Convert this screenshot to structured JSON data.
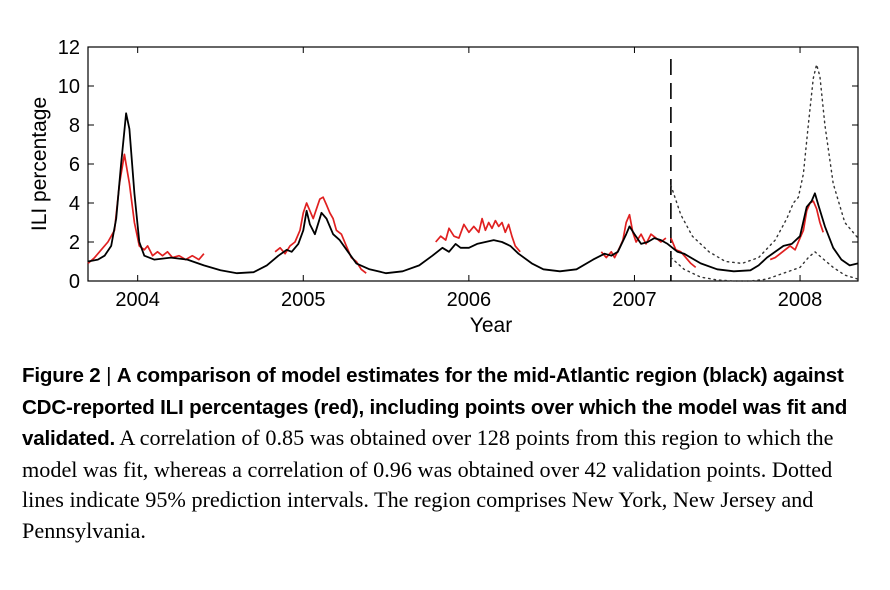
{
  "chart_data": {
    "type": "line",
    "xlabel": "Year",
    "ylabel": "ILI percentage",
    "xlim": [
      2003.7,
      2008.35
    ],
    "ylim": [
      0,
      12
    ],
    "x_ticks": [
      2004,
      2005,
      2006,
      2007,
      2008
    ],
    "y_ticks": [
      0,
      2,
      4,
      6,
      8,
      10,
      12
    ],
    "fit_validation_boundary": 2007.22,
    "series": [
      {
        "color": "#000000",
        "style": "solid",
        "points": [
          [
            2003.7,
            1.0
          ],
          [
            2003.76,
            1.1
          ],
          [
            2003.8,
            1.3
          ],
          [
            2003.84,
            1.8
          ],
          [
            2003.87,
            3.2
          ],
          [
            2003.9,
            6.0
          ],
          [
            2003.93,
            8.6
          ],
          [
            2003.95,
            7.8
          ],
          [
            2003.98,
            4.5
          ],
          [
            2004.01,
            2.0
          ],
          [
            2004.04,
            1.3
          ],
          [
            2004.1,
            1.1
          ],
          [
            2004.2,
            1.2
          ],
          [
            2004.3,
            1.1
          ],
          [
            2004.4,
            0.8
          ],
          [
            2004.5,
            0.55
          ],
          [
            2004.6,
            0.4
          ],
          [
            2004.7,
            0.45
          ],
          [
            2004.78,
            0.8
          ],
          [
            2004.85,
            1.3
          ],
          [
            2004.9,
            1.6
          ],
          [
            2004.93,
            1.5
          ],
          [
            2004.97,
            1.9
          ],
          [
            2005.0,
            2.6
          ],
          [
            2005.02,
            3.6
          ],
          [
            2005.04,
            2.9
          ],
          [
            2005.07,
            2.4
          ],
          [
            2005.11,
            3.5
          ],
          [
            2005.14,
            3.2
          ],
          [
            2005.18,
            2.4
          ],
          [
            2005.22,
            2.1
          ],
          [
            2005.27,
            1.5
          ],
          [
            2005.32,
            0.9
          ],
          [
            2005.4,
            0.6
          ],
          [
            2005.5,
            0.4
          ],
          [
            2005.6,
            0.5
          ],
          [
            2005.7,
            0.8
          ],
          [
            2005.78,
            1.3
          ],
          [
            2005.84,
            1.7
          ],
          [
            2005.88,
            1.5
          ],
          [
            2005.92,
            1.9
          ],
          [
            2005.95,
            1.7
          ],
          [
            2006.0,
            1.7
          ],
          [
            2006.05,
            1.9
          ],
          [
            2006.1,
            2.0
          ],
          [
            2006.15,
            2.1
          ],
          [
            2006.2,
            2.0
          ],
          [
            2006.25,
            1.8
          ],
          [
            2006.3,
            1.4
          ],
          [
            2006.38,
            0.9
          ],
          [
            2006.45,
            0.6
          ],
          [
            2006.55,
            0.5
          ],
          [
            2006.65,
            0.6
          ],
          [
            2006.75,
            1.1
          ],
          [
            2006.82,
            1.4
          ],
          [
            2006.86,
            1.3
          ],
          [
            2006.9,
            1.5
          ],
          [
            2006.95,
            2.4
          ],
          [
            2006.97,
            2.8
          ],
          [
            2007.0,
            2.4
          ],
          [
            2007.04,
            1.9
          ],
          [
            2007.08,
            2.0
          ],
          [
            2007.12,
            2.2
          ],
          [
            2007.16,
            2.1
          ],
          [
            2007.2,
            1.9
          ],
          [
            2007.26,
            1.5
          ],
          [
            2007.3,
            1.4
          ],
          [
            2007.4,
            0.9
          ],
          [
            2007.5,
            0.6
          ],
          [
            2007.6,
            0.5
          ],
          [
            2007.7,
            0.55
          ],
          [
            2007.75,
            0.8
          ],
          [
            2007.8,
            1.2
          ],
          [
            2007.85,
            1.5
          ],
          [
            2007.9,
            1.8
          ],
          [
            2007.95,
            1.9
          ],
          [
            2008.0,
            2.3
          ],
          [
            2008.04,
            3.8
          ],
          [
            2008.07,
            4.1
          ],
          [
            2008.09,
            4.5
          ],
          [
            2008.11,
            3.9
          ],
          [
            2008.15,
            2.8
          ],
          [
            2008.2,
            1.7
          ],
          [
            2008.25,
            1.1
          ],
          [
            2008.3,
            0.8
          ],
          [
            2008.35,
            0.9
          ]
        ]
      },
      {
        "color": "#e02020",
        "style": "solid",
        "points": [
          [
            2003.7,
            0.9
          ],
          [
            2003.74,
            1.2
          ],
          [
            2003.78,
            1.6
          ],
          [
            2003.82,
            2.0
          ],
          [
            2003.86,
            2.6
          ],
          [
            2003.89,
            5.0
          ],
          [
            2003.92,
            6.5
          ],
          [
            2003.95,
            5.0
          ],
          [
            2003.98,
            3.0
          ],
          [
            2004.01,
            1.8
          ],
          [
            2004.04,
            1.5
          ],
          [
            2004.07,
            1.7
          ],
          [
            2004.1,
            1.4
          ],
          [
            2004.14,
            1.3
          ],
          [
            2004.18,
            1.5
          ],
          [
            2004.22,
            1.1
          ],
          [
            2004.26,
            1.2
          ],
          [
            2004.3,
            1.1
          ],
          [
            2004.34,
            1.2
          ],
          [
            2004.38,
            1.1
          ]
        ],
        "segments": [
          [
            [
              2003.7,
              0.9
            ],
            [
              2003.74,
              1.2
            ],
            [
              2003.78,
              1.6
            ],
            [
              2003.82,
              2.0
            ],
            [
              2003.86,
              2.6
            ],
            [
              2003.89,
              5.0
            ],
            [
              2003.92,
              6.5
            ],
            [
              2003.95,
              5.0
            ],
            [
              2003.98,
              3.0
            ],
            [
              2004.01,
              1.8
            ],
            [
              2004.04,
              1.6
            ],
            [
              2004.06,
              1.8
            ],
            [
              2004.09,
              1.3
            ],
            [
              2004.12,
              1.5
            ],
            [
              2004.15,
              1.3
            ],
            [
              2004.18,
              1.5
            ],
            [
              2004.21,
              1.2
            ],
            [
              2004.25,
              1.3
            ],
            [
              2004.29,
              1.1
            ],
            [
              2004.33,
              1.3
            ],
            [
              2004.37,
              1.1
            ],
            [
              2004.4,
              1.4
            ]
          ],
          [
            [
              2004.83,
              1.5
            ],
            [
              2004.86,
              1.7
            ],
            [
              2004.89,
              1.4
            ],
            [
              2004.92,
              1.8
            ],
            [
              2004.95,
              2.0
            ],
            [
              2004.98,
              2.6
            ],
            [
              2005.0,
              3.5
            ],
            [
              2005.02,
              4.0
            ],
            [
              2005.04,
              3.6
            ],
            [
              2005.06,
              3.2
            ],
            [
              2005.08,
              3.7
            ],
            [
              2005.1,
              4.2
            ],
            [
              2005.12,
              4.3
            ],
            [
              2005.14,
              3.9
            ],
            [
              2005.16,
              3.5
            ],
            [
              2005.18,
              3.2
            ],
            [
              2005.2,
              2.6
            ],
            [
              2005.23,
              2.4
            ],
            [
              2005.26,
              1.8
            ],
            [
              2005.29,
              1.2
            ],
            [
              2005.32,
              1.0
            ],
            [
              2005.35,
              0.6
            ],
            [
              2005.38,
              0.4
            ]
          ],
          [
            [
              2005.8,
              2.0
            ],
            [
              2005.83,
              2.3
            ],
            [
              2005.86,
              2.1
            ],
            [
              2005.88,
              2.7
            ],
            [
              2005.91,
              2.3
            ],
            [
              2005.94,
              2.2
            ],
            [
              2005.97,
              2.9
            ],
            [
              2006.0,
              2.5
            ],
            [
              2006.03,
              2.8
            ],
            [
              2006.06,
              2.5
            ],
            [
              2006.08,
              3.2
            ],
            [
              2006.1,
              2.6
            ],
            [
              2006.12,
              3.0
            ],
            [
              2006.14,
              2.7
            ],
            [
              2006.16,
              3.1
            ],
            [
              2006.18,
              2.8
            ],
            [
              2006.2,
              3.0
            ],
            [
              2006.22,
              2.5
            ],
            [
              2006.24,
              2.9
            ],
            [
              2006.26,
              2.3
            ],
            [
              2006.28,
              1.8
            ],
            [
              2006.31,
              1.5
            ]
          ],
          [
            [
              2006.8,
              1.5
            ],
            [
              2006.83,
              1.2
            ],
            [
              2006.86,
              1.5
            ],
            [
              2006.88,
              1.2
            ],
            [
              2006.91,
              1.7
            ],
            [
              2006.93,
              2.1
            ],
            [
              2006.95,
              3.0
            ],
            [
              2006.97,
              3.4
            ],
            [
              2006.99,
              2.5
            ],
            [
              2007.01,
              2.0
            ],
            [
              2007.04,
              2.4
            ],
            [
              2007.07,
              1.9
            ],
            [
              2007.1,
              2.4
            ],
            [
              2007.13,
              2.2
            ],
            [
              2007.16,
              2.0
            ],
            [
              2007.19,
              2.2
            ]
          ],
          [
            [
              2007.22,
              2.2
            ],
            [
              2007.25,
              1.6
            ],
            [
              2007.28,
              1.5
            ],
            [
              2007.31,
              1.2
            ],
            [
              2007.34,
              0.9
            ],
            [
              2007.37,
              0.7
            ]
          ],
          [
            [
              2007.82,
              1.1
            ],
            [
              2007.85,
              1.2
            ],
            [
              2007.88,
              1.4
            ],
            [
              2007.91,
              1.6
            ],
            [
              2007.94,
              1.8
            ],
            [
              2007.97,
              1.6
            ],
            [
              2008.0,
              2.2
            ],
            [
              2008.02,
              2.6
            ],
            [
              2008.04,
              3.6
            ],
            [
              2008.06,
              4.0
            ],
            [
              2008.08,
              4.1
            ],
            [
              2008.1,
              3.7
            ],
            [
              2008.12,
              3.0
            ],
            [
              2008.14,
              2.5
            ]
          ]
        ]
      },
      {
        "color": "#333333",
        "style": "dotted",
        "segments": [
          [
            [
              2007.22,
              4.9
            ],
            [
              2007.28,
              3.4
            ],
            [
              2007.35,
              2.3
            ],
            [
              2007.45,
              1.5
            ],
            [
              2007.55,
              1.0
            ],
            [
              2007.65,
              0.9
            ],
            [
              2007.75,
              1.2
            ],
            [
              2007.85,
              2.1
            ],
            [
              2007.92,
              3.2
            ],
            [
              2007.96,
              4.0
            ],
            [
              2007.99,
              4.3
            ],
            [
              2008.02,
              5.5
            ],
            [
              2008.05,
              8.0
            ],
            [
              2008.08,
              10.4
            ],
            [
              2008.1,
              11.1
            ],
            [
              2008.12,
              10.5
            ],
            [
              2008.15,
              8.0
            ],
            [
              2008.2,
              5.0
            ],
            [
              2008.27,
              3.0
            ],
            [
              2008.35,
              2.2
            ]
          ],
          [
            [
              2007.22,
              1.2
            ],
            [
              2007.3,
              0.6
            ],
            [
              2007.4,
              0.2
            ],
            [
              2007.5,
              0.05
            ],
            [
              2007.6,
              0.0
            ],
            [
              2007.7,
              0.0
            ],
            [
              2007.8,
              0.1
            ],
            [
              2007.9,
              0.4
            ],
            [
              2008.0,
              0.7
            ],
            [
              2008.05,
              1.2
            ],
            [
              2008.09,
              1.5
            ],
            [
              2008.13,
              1.2
            ],
            [
              2008.2,
              0.7
            ],
            [
              2008.27,
              0.3
            ],
            [
              2008.35,
              0.1
            ]
          ]
        ]
      }
    ]
  },
  "caption": {
    "label": "Figure 2",
    "separator": "|",
    "bold_text": "A comparison of model estimates for the mid-Atlantic region (black) against CDC-reported ILI percentages (red), including points over which the model was fit and validated.",
    "body_text": "A correlation of 0.85 was obtained over 128 points from this region to which the model was fit, whereas a correlation of 0.96 was obtained over 42 validation points. Dotted lines indicate 95% prediction intervals. The region comprises New York, New Jersey and Pennsylvania."
  }
}
